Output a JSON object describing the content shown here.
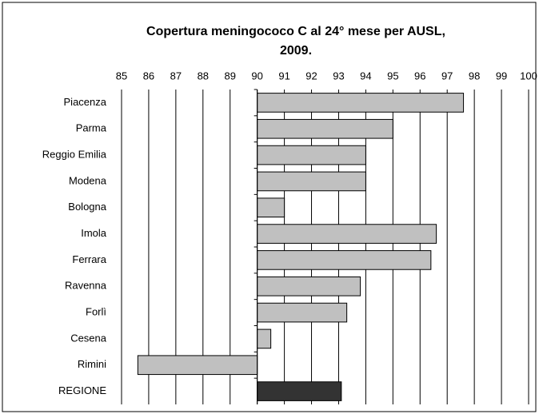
{
  "chart_data": {
    "type": "hbar",
    "title": "Copertura meningococo C al 24° mese per AUSL,",
    "subtitle": "2009.",
    "categories": [
      "Piacenza",
      "Parma",
      "Reggio Emilia",
      "Modena",
      "Bologna",
      "Imola",
      "Ferrara",
      "Ravenna",
      "Forlì",
      "Cesena",
      "Rimini",
      "REGIONE"
    ],
    "values": [
      97.6,
      95.0,
      94.0,
      94.0,
      91.0,
      96.6,
      96.4,
      93.8,
      93.3,
      90.5,
      85.6,
      93.1
    ],
    "colors": [
      "#c0c0c0",
      "#c0c0c0",
      "#c0c0c0",
      "#c0c0c0",
      "#c0c0c0",
      "#c0c0c0",
      "#c0c0c0",
      "#c0c0c0",
      "#c0c0c0",
      "#c0c0c0",
      "#c0c0c0",
      "#333333"
    ],
    "bar_base": 90,
    "xlim": [
      85,
      100
    ],
    "xticks": [
      85,
      86,
      87,
      88,
      89,
      90,
      91,
      92,
      93,
      94,
      95,
      96,
      97,
      98,
      99,
      100
    ],
    "grid": true
  }
}
